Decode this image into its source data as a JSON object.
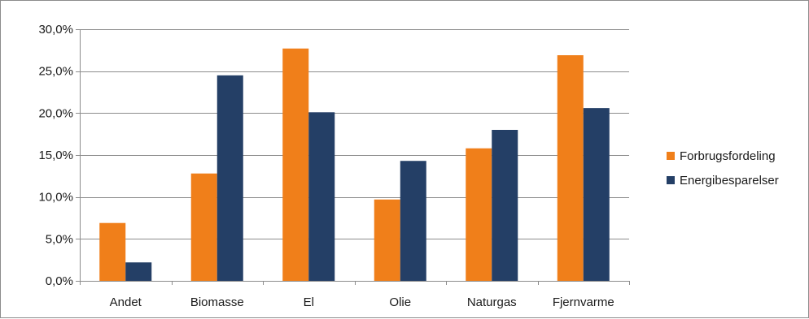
{
  "chart_data": {
    "type": "bar",
    "categories": [
      "Andet",
      "Biomasse",
      "El",
      "Olie",
      "Naturgas",
      "Fjernvarme"
    ],
    "series": [
      {
        "name": "Forbrugsfordeling",
        "color": "#f07f1a",
        "values": [
          6.9,
          12.8,
          27.7,
          9.7,
          15.8,
          26.9
        ]
      },
      {
        "name": "Energibesparelser",
        "color": "#243f66",
        "values": [
          2.2,
          24.5,
          20.1,
          14.3,
          18.0,
          20.6
        ]
      }
    ],
    "ylim": [
      0,
      30
    ],
    "yticks": [
      "0,0%",
      "5,0%",
      "10,0%",
      "15,0%",
      "20,0%",
      "25,0%",
      "30,0%"
    ],
    "ytick_values": [
      0,
      5,
      10,
      15,
      20,
      25,
      30
    ],
    "grid": true,
    "legend_position": "right"
  }
}
